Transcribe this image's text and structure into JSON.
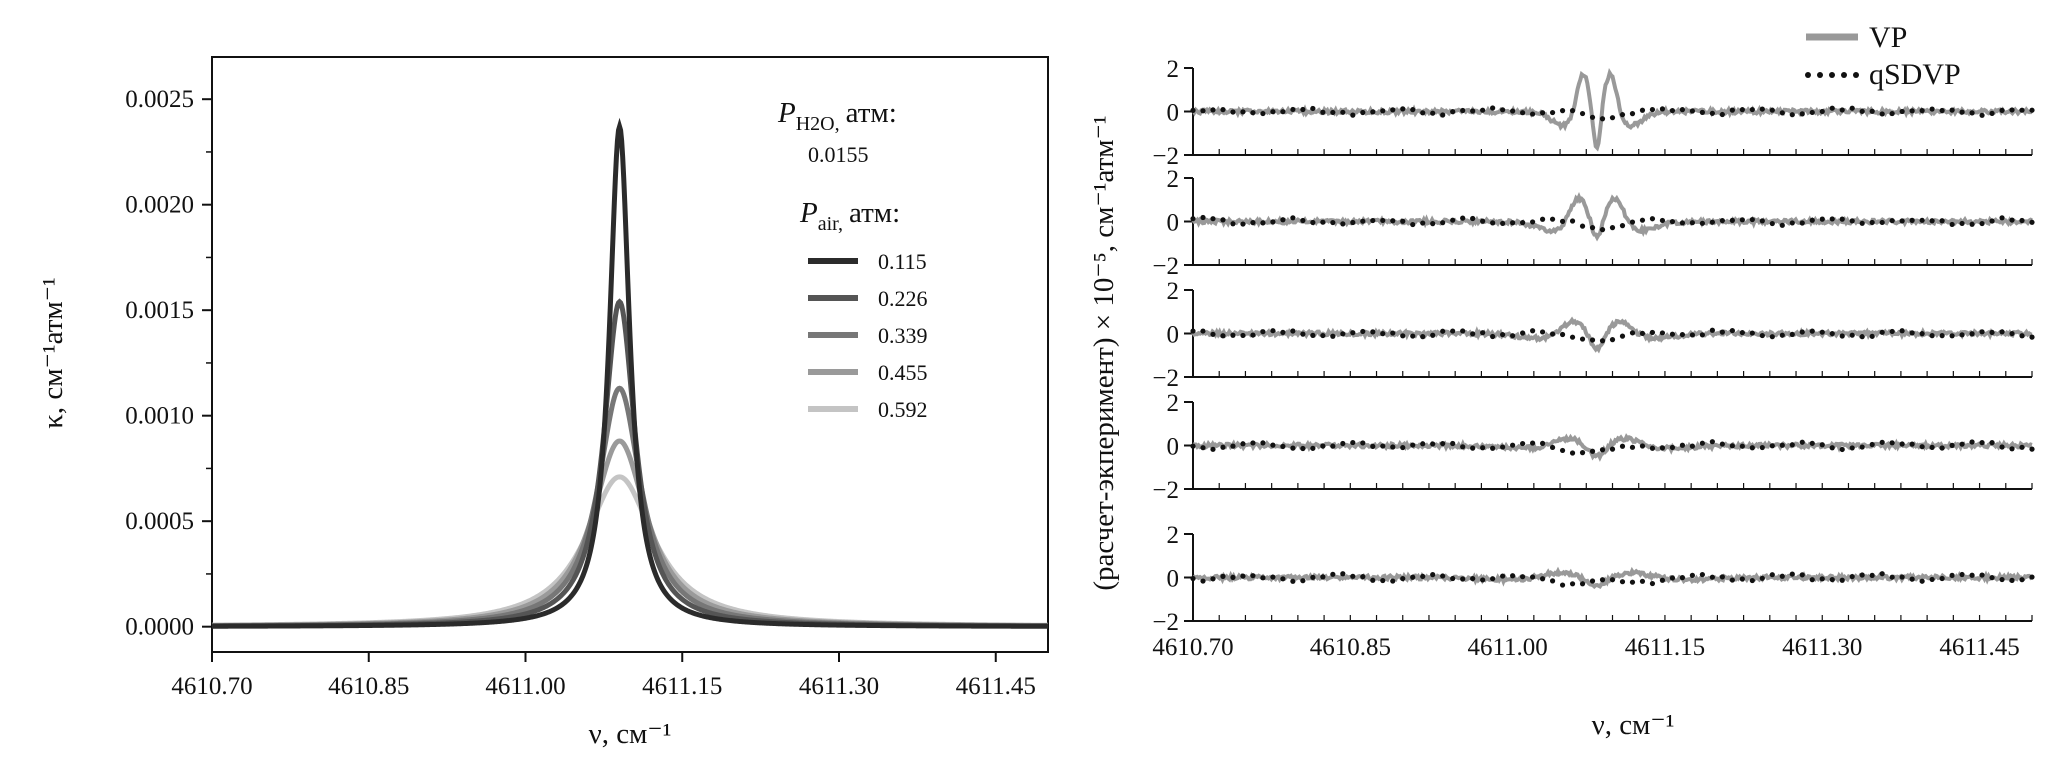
{
  "chart_data": [
    {
      "type": "line",
      "xlabel": "ν, см⁻¹",
      "ylabel": "κ, см⁻¹атм⁻¹",
      "xlim": [
        4610.7,
        4611.5
      ],
      "ylim": [
        -0.00012,
        0.0027
      ],
      "xticks": [
        4610.7,
        4610.85,
        4611.0,
        4611.15,
        4611.3,
        4611.45
      ],
      "xtick_labels": [
        "4610.70",
        "4610.85",
        "4611.00",
        "4611.15",
        "4611.30",
        "4611.45"
      ],
      "yticks": [
        0.0,
        0.0005,
        0.001,
        0.0015,
        0.002,
        0.0025
      ],
      "ytick_labels": [
        "0.0000",
        "0.0005",
        "0.0010",
        "0.0015",
        "0.0020",
        "0.0025"
      ],
      "grid": false,
      "legend_placement": "top-right",
      "legend_h2o_label": "P",
      "legend_h2o_sub": "H2O,",
      "legend_h2o_unit": "атм:",
      "legend_h2o_value": "0.0155",
      "legend_air_label": "P",
      "legend_air_sub": "air,",
      "legend_air_unit": "атм:",
      "line_center": 4611.09,
      "series": [
        {
          "name": "0.115",
          "peak": 0.00237,
          "hwhm": 0.0118,
          "color": "#2b2b2b"
        },
        {
          "name": "0.226",
          "peak": 0.00154,
          "hwhm": 0.0182,
          "color": "#555555"
        },
        {
          "name": "0.339",
          "peak": 0.00113,
          "hwhm": 0.0248,
          "color": "#777777"
        },
        {
          "name": "0.455",
          "peak": 0.00088,
          "hwhm": 0.0318,
          "color": "#9a9a9a"
        },
        {
          "name": "0.592",
          "peak": 0.00071,
          "hwhm": 0.0395,
          "color": "#c4c4c4"
        }
      ]
    },
    {
      "type": "line",
      "xlabel": "ν, см⁻¹",
      "ylabel": "(расчет-экперимент) × 10⁻⁵, см⁻¹атм⁻¹",
      "xlim": [
        4610.7,
        4611.5
      ],
      "ylim": [
        -2,
        2
      ],
      "yticks": [
        -2,
        0,
        2
      ],
      "ytick_labels": [
        "−2",
        "0",
        "2"
      ],
      "xticks": [
        4610.7,
        4610.85,
        4611.0,
        4611.15,
        4611.3,
        4611.45
      ],
      "xtick_labels": [
        "4610.70",
        "4610.85",
        "4611.00",
        "4611.15",
        "4611.30",
        "4611.45"
      ],
      "grid": false,
      "legend_placement": "top-right",
      "series": [
        {
          "name": "VP",
          "style": "solid",
          "color": "#999999"
        },
        {
          "name": "qSDVP",
          "style": "dotted",
          "color": "#111111"
        }
      ],
      "panels": [
        {
          "vp_amp": 1.9,
          "center_dip": -2.0,
          "width": 0.012
        },
        {
          "vp_amp": 1.2,
          "center_dip": -0.9,
          "width": 0.016
        },
        {
          "vp_amp": 0.6,
          "center_dip": -0.8,
          "width": 0.021
        },
        {
          "vp_amp": 0.35,
          "center_dip": -0.55,
          "width": 0.026
        },
        {
          "vp_amp": 0.25,
          "center_dip": -0.4,
          "width": 0.032
        }
      ]
    }
  ]
}
